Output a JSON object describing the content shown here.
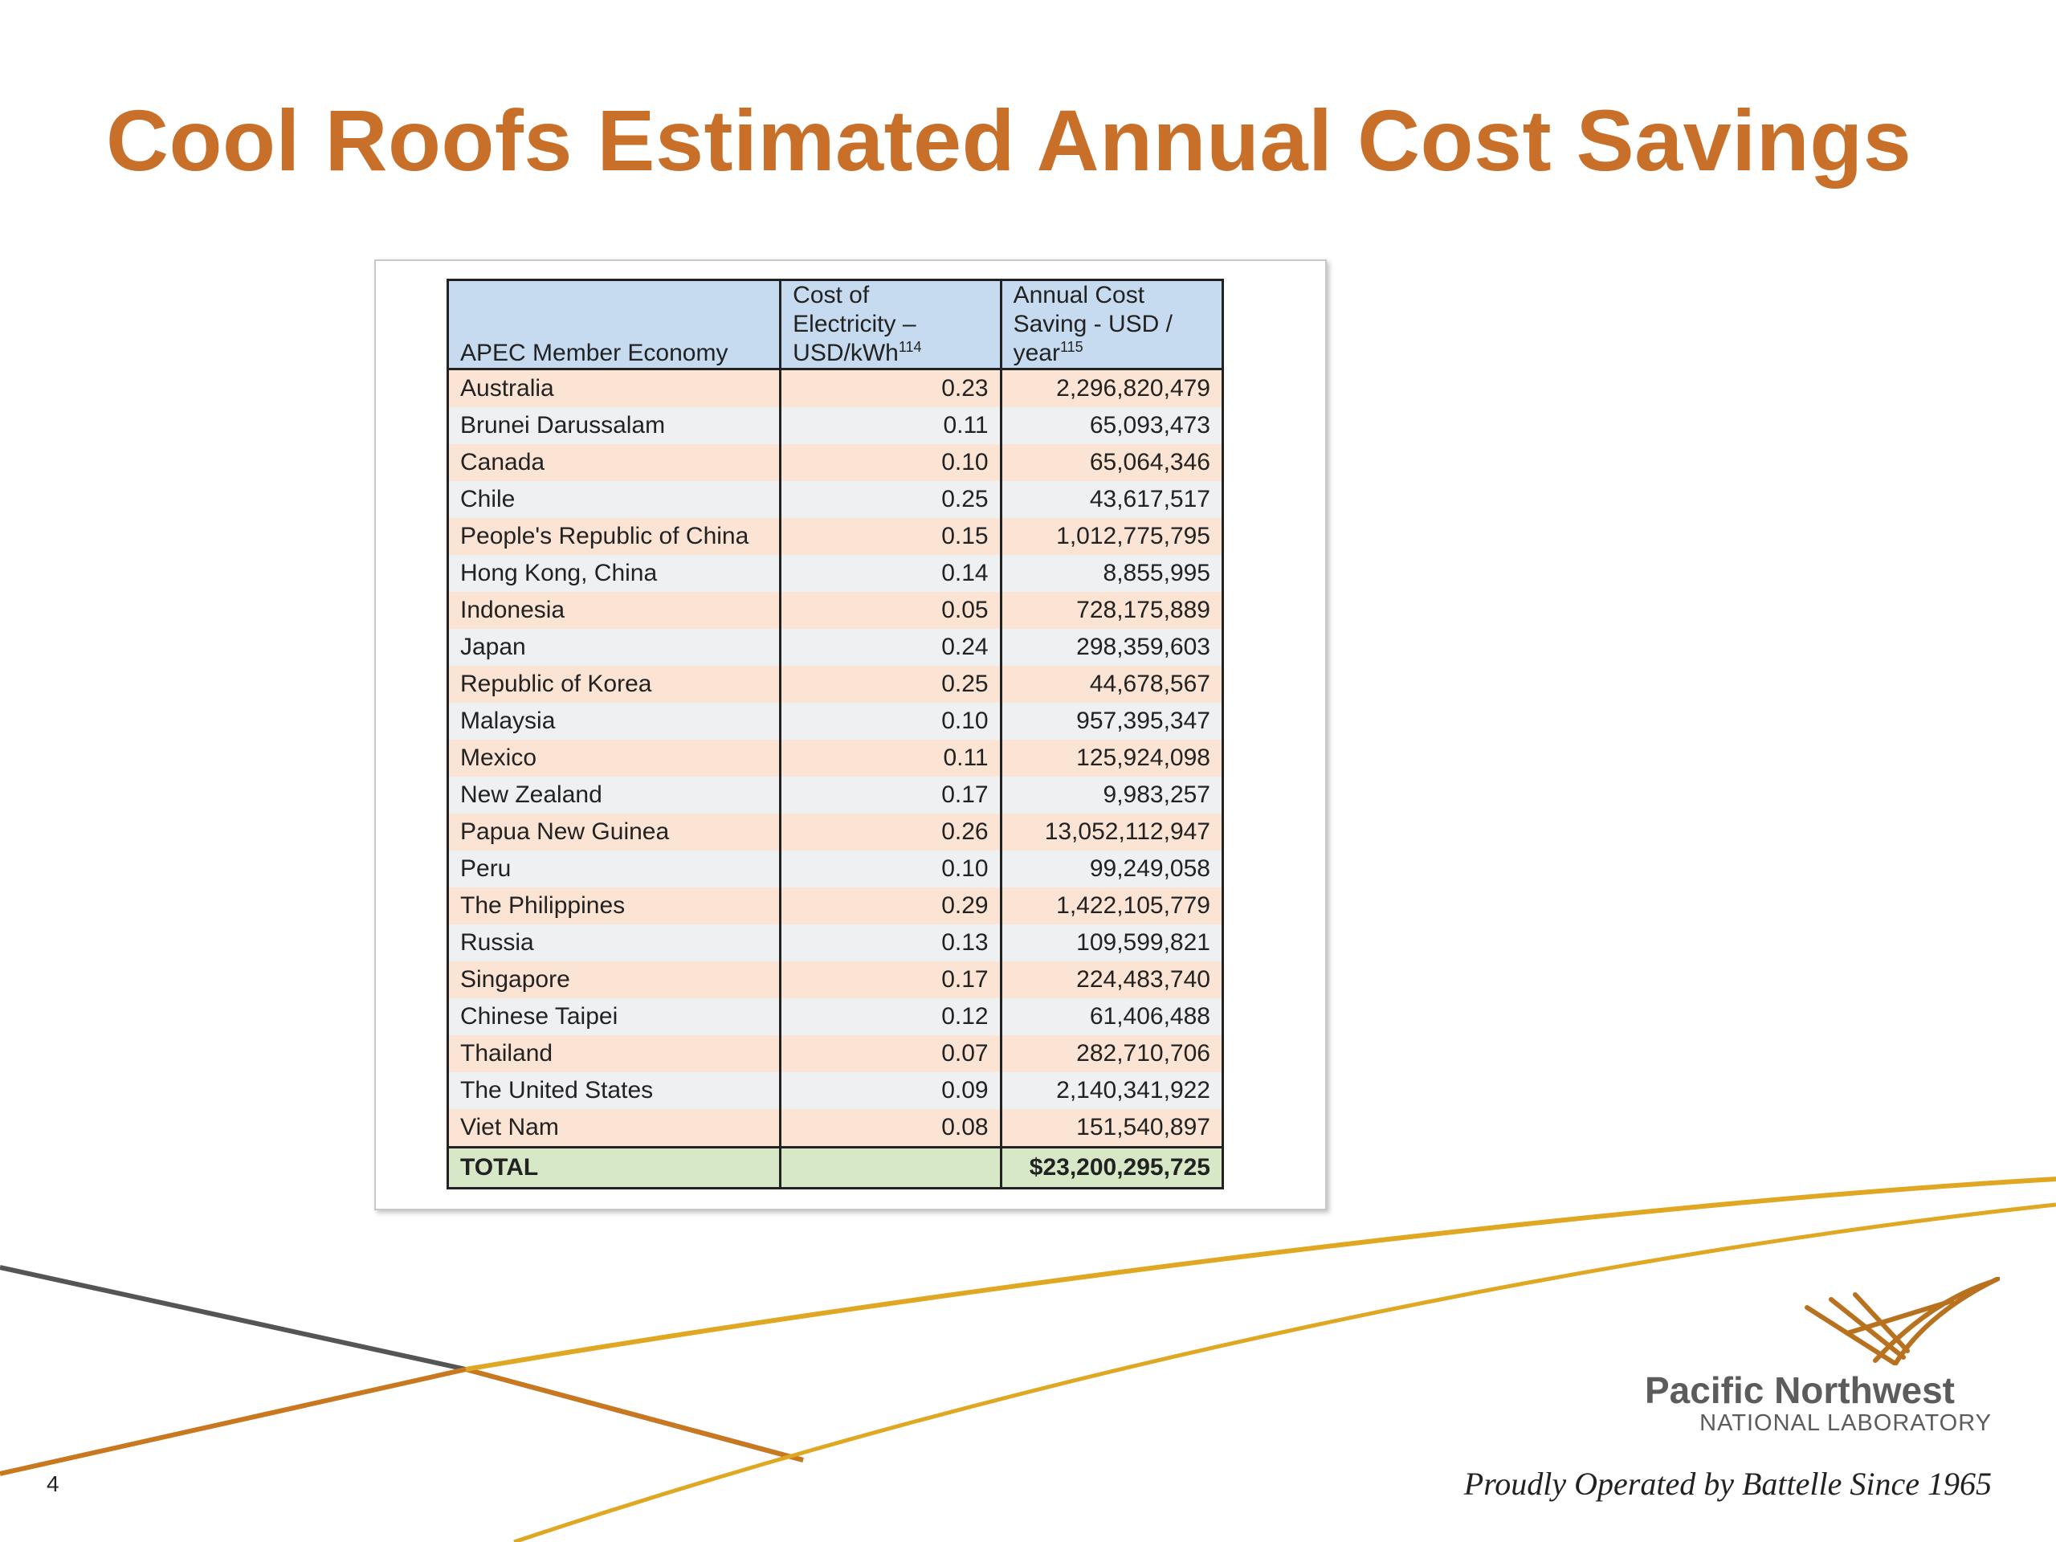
{
  "title": "Cool Roofs Estimated Annual Cost Savings",
  "table": {
    "headers": {
      "economy": "APEC Member Economy",
      "cost_line1": "Cost of",
      "cost_line2": "Electricity –",
      "cost_line3": "USD/kWh",
      "cost_ref": "114",
      "saving_line1": "Annual Cost",
      "saving_line2": "Saving - USD /",
      "saving_line3": "year",
      "saving_ref": "115"
    },
    "rows": [
      {
        "economy": "Australia",
        "cost": "0.23",
        "saving": "2,296,820,479"
      },
      {
        "economy": "Brunei Darussalam",
        "cost": "0.11",
        "saving": "65,093,473"
      },
      {
        "economy": "Canada",
        "cost": "0.10",
        "saving": "65,064,346"
      },
      {
        "economy": "Chile",
        "cost": "0.25",
        "saving": "43,617,517"
      },
      {
        "economy": "People's Republic of China",
        "cost": "0.15",
        "saving": "1,012,775,795"
      },
      {
        "economy": "Hong Kong, China",
        "cost": "0.14",
        "saving": "8,855,995"
      },
      {
        "economy": "Indonesia",
        "cost": "0.05",
        "saving": "728,175,889"
      },
      {
        "economy": "Japan",
        "cost": "0.24",
        "saving": "298,359,603"
      },
      {
        "economy": "Republic of Korea",
        "cost": "0.25",
        "saving": "44,678,567"
      },
      {
        "economy": "Malaysia",
        "cost": "0.10",
        "saving": "957,395,347"
      },
      {
        "economy": "Mexico",
        "cost": "0.11",
        "saving": "125,924,098"
      },
      {
        "economy": "New Zealand",
        "cost": "0.17",
        "saving": "9,983,257"
      },
      {
        "economy": "Papua New Guinea",
        "cost": "0.26",
        "saving": "13,052,112,947"
      },
      {
        "economy": "Peru",
        "cost": "0.10",
        "saving": "99,249,058"
      },
      {
        "economy": "The Philippines",
        "cost": "0.29",
        "saving": "1,422,105,779"
      },
      {
        "economy": "Russia",
        "cost": "0.13",
        "saving": "109,599,821"
      },
      {
        "economy": "Singapore",
        "cost": "0.17",
        "saving": "224,483,740"
      },
      {
        "economy": "Chinese Taipei",
        "cost": "0.12",
        "saving": "61,406,488"
      },
      {
        "economy": "Thailand",
        "cost": "0.07",
        "saving": "282,710,706"
      },
      {
        "economy": "The United States",
        "cost": "0.09",
        "saving": "2,140,341,922"
      },
      {
        "economy": "Viet Nam",
        "cost": "0.08",
        "saving": "151,540,897"
      }
    ],
    "total": {
      "label": "TOTAL",
      "cost": "",
      "saving": "$23,200,295,725"
    }
  },
  "footer": {
    "page_number": "4",
    "logo_line1": "Pacific Northwest",
    "logo_line2": "NATIONAL LABORATORY",
    "tagline": "Proudly Operated by Battelle Since 1965"
  },
  "colors": {
    "title": "#c8702a",
    "header_fill": "#c6dbf0",
    "row_odd_fill": "#fce4d4",
    "row_even_fill": "#eef0f2",
    "total_fill": "#d7e8c6",
    "swoosh_gold": "#e0a822",
    "swoosh_orange": "#c9781f",
    "swoosh_gray": "#555555"
  },
  "icons": {
    "logo": "pnnl-chevron-logo"
  }
}
